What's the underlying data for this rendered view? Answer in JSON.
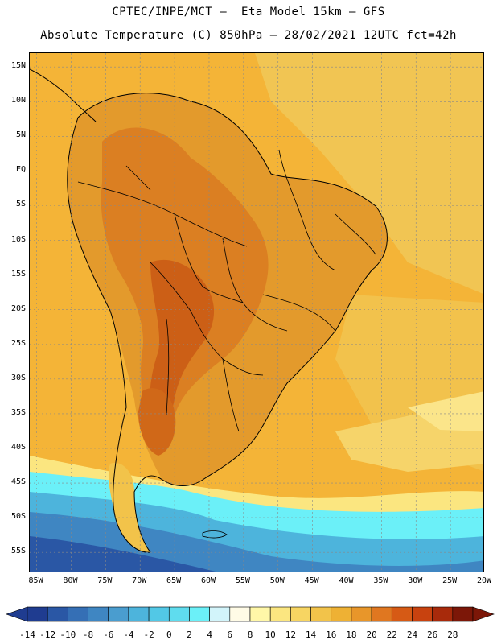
{
  "titles": {
    "line1": "CPTEC/INPE/MCT –  Eta Model 15km – GFS",
    "line2": "Absolute Temperature (C) 850hPa – 28/02/2021 12UTC fct=42h"
  },
  "axes": {
    "lat_labels": [
      "15N",
      "10N",
      "5N",
      "EQ",
      "5S",
      "10S",
      "15S",
      "20S",
      "25S",
      "30S",
      "35S",
      "40S",
      "45S",
      "50S",
      "55S"
    ],
    "lon_labels": [
      "85W",
      "80W",
      "75W",
      "70W",
      "65W",
      "60W",
      "55W",
      "50W",
      "45W",
      "40W",
      "35W",
      "30W",
      "25W",
      "20W"
    ],
    "lat_range": [
      -58,
      17
    ],
    "lon_range": [
      -86,
      -20
    ]
  },
  "colorbar": {
    "labels": [
      "-14",
      "-12",
      "-10",
      "-8",
      "-6",
      "-4",
      "-2",
      "0",
      "2",
      "4",
      "6",
      "8",
      "10",
      "12",
      "14",
      "16",
      "18",
      "20",
      "22",
      "24",
      "26",
      "28"
    ],
    "colors": [
      "#1f3c90",
      "#2a57a5",
      "#356fb5",
      "#3f86c2",
      "#4a9dcf",
      "#4db4dc",
      "#52c8e6",
      "#5fdcee",
      "#6bf0f8",
      "#d2f4fa",
      "#fffbe6",
      "#fff7a8",
      "#fbe680",
      "#f7d562",
      "#f2c34a",
      "#eeb134",
      "#e8962a",
      "#e07720",
      "#d65a15",
      "#c8420f",
      "#a82a0b",
      "#7c1708"
    ],
    "left_arrow_color": "#1f3c90",
    "right_arrow_color": "#7c1708"
  },
  "map": {
    "ocean_base_color": "#f5b535",
    "grid": true,
    "coastline_color": "#000000"
  }
}
